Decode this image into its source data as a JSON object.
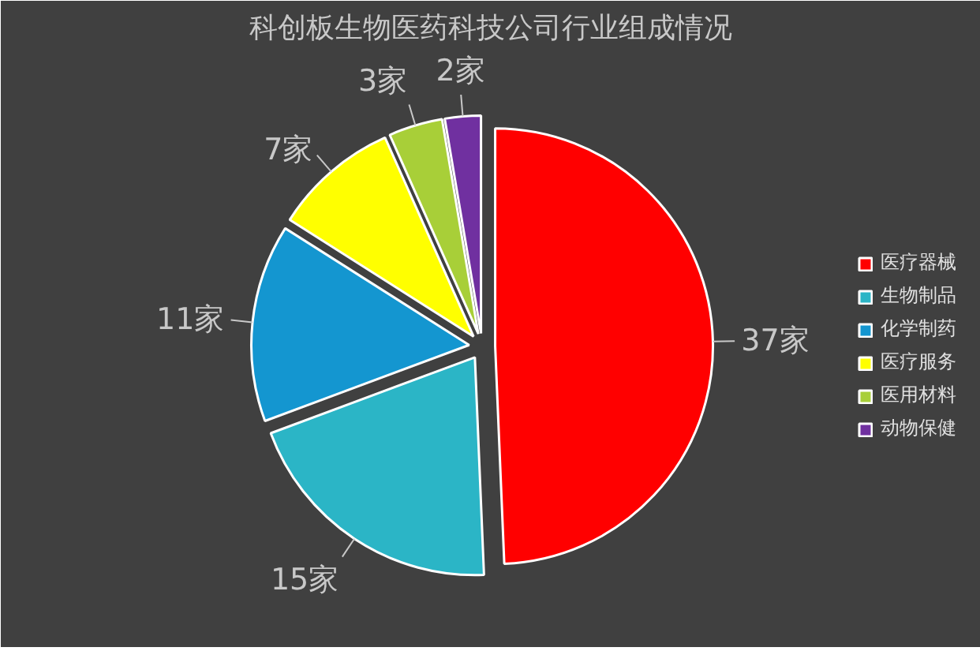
{
  "chart_data": {
    "type": "pie",
    "title": "科创板生物医药科技公司行业组成情况",
    "categories": [
      "医疗器械",
      "生物制品",
      "化学制药",
      "医疗服务",
      "医用材料",
      "动物保健"
    ],
    "values": [
      37,
      15,
      11,
      7,
      3,
      2
    ],
    "colors": [
      "#ff0000",
      "#2bb5c6",
      "#1496d0",
      "#ffff00",
      "#a8cf38",
      "#7030a0"
    ],
    "value_labels": [
      "37家",
      "15家",
      "11家",
      "7家",
      "3家",
      "2家"
    ],
    "legend": "right"
  }
}
